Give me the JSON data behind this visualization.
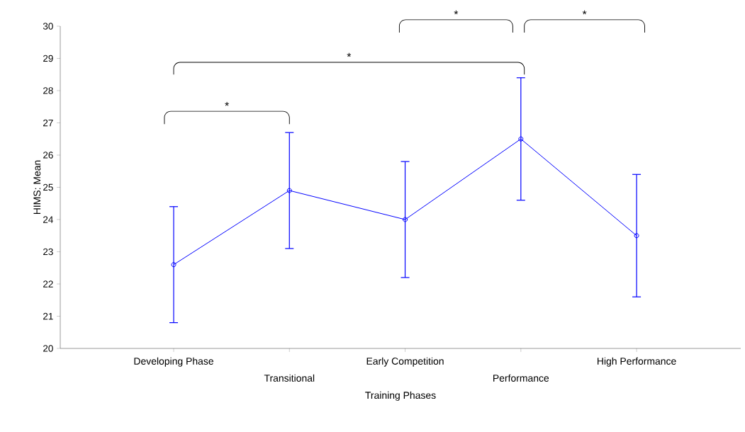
{
  "chart_data": {
    "type": "line",
    "xlabel": "Training Phases",
    "ylabel": "HIMS: Mean",
    "categories": [
      "Developing Phase",
      "Transitional",
      "Early Competition",
      "Performance",
      "High Performance"
    ],
    "series": [
      {
        "color": "#0000ff",
        "values": [
          22.6,
          24.9,
          24.0,
          26.5,
          23.5
        ],
        "errors": [
          1.8,
          1.8,
          1.8,
          1.9,
          1.9
        ]
      }
    ],
    "ylim": [
      20,
      30
    ],
    "yticks": [
      20,
      21,
      22,
      23,
      24,
      25,
      26,
      27,
      28,
      29,
      30
    ],
    "marker": "circle",
    "line_style": "solid",
    "grid": false,
    "annotations": [
      "*",
      "*",
      "*",
      "*"
    ]
  }
}
